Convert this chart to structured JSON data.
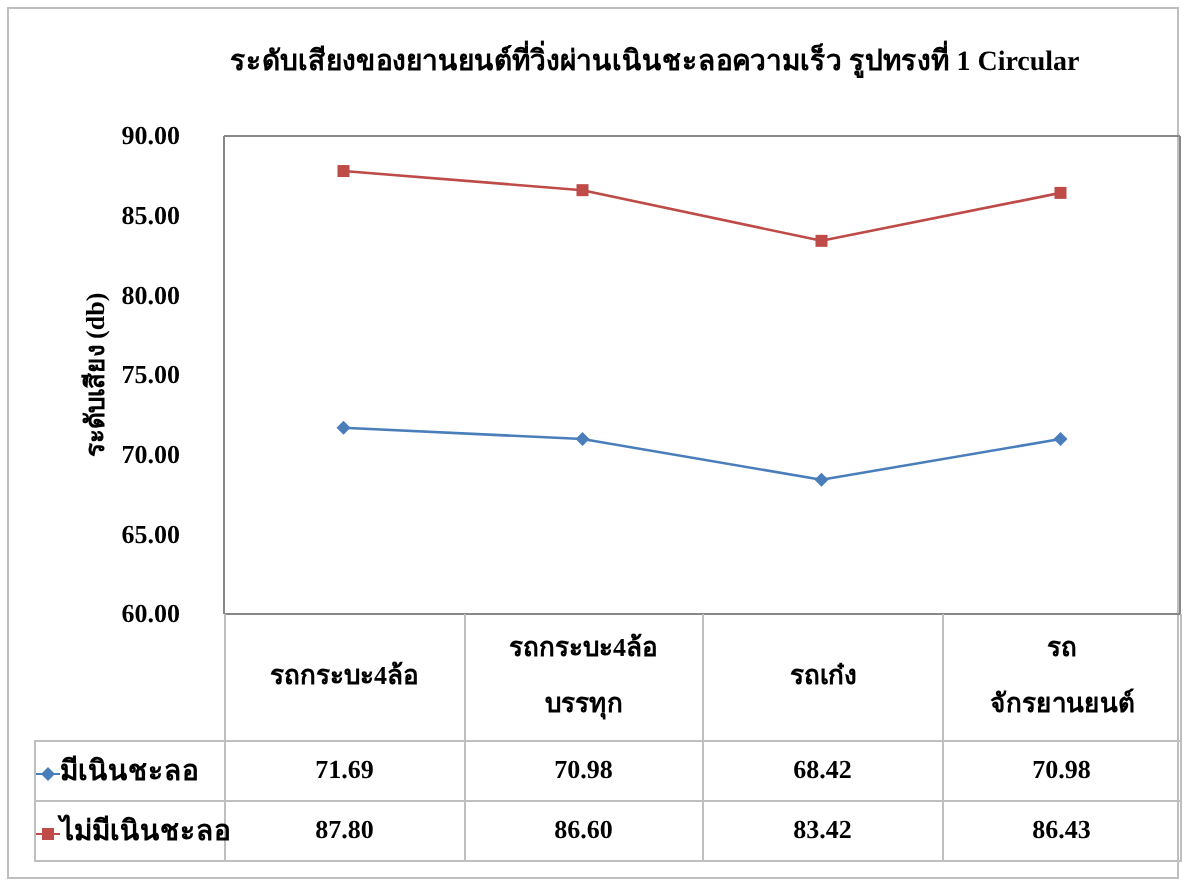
{
  "chart_data": {
    "type": "line",
    "title": "ระดับเสียงของยานยนต์ที่วิ่งผ่านเนินชะลอความเร็ว รูปทรงที่ 1 Circular",
    "ylabel": "ระดับเสียง (db)",
    "categories": [
      "รถกระบะ4ล้อ",
      "รถกระบะ4ล้อบรรทุก",
      "รถเก๋ง",
      "รถจักรยานยนต์"
    ],
    "series": [
      {
        "name": "มีเนินชะลอ",
        "color": "#4a7ebb",
        "marker": "diamond",
        "values": [
          71.69,
          70.98,
          68.42,
          70.98
        ],
        "value_labels": [
          "71.69",
          "70.98",
          "68.42",
          "70.98"
        ]
      },
      {
        "name": "ไม่มีเนินชะลอ",
        "color": "#be4b48",
        "marker": "square",
        "values": [
          87.8,
          86.6,
          83.42,
          86.43
        ],
        "value_labels": [
          "87.80",
          "86.60",
          "83.42",
          "86.43"
        ]
      }
    ],
    "ylim": [
      60,
      90
    ],
    "yticks": [
      {
        "value": 60,
        "label": "60.00"
      },
      {
        "value": 65,
        "label": "65.00"
      },
      {
        "value": 70,
        "label": "70.00"
      },
      {
        "value": 75,
        "label": "75.00"
      },
      {
        "value": 80,
        "label": "80.00"
      },
      {
        "value": 85,
        "label": "85.00"
      },
      {
        "value": 90,
        "label": "90.00"
      }
    ],
    "legend": "bottom left"
  }
}
